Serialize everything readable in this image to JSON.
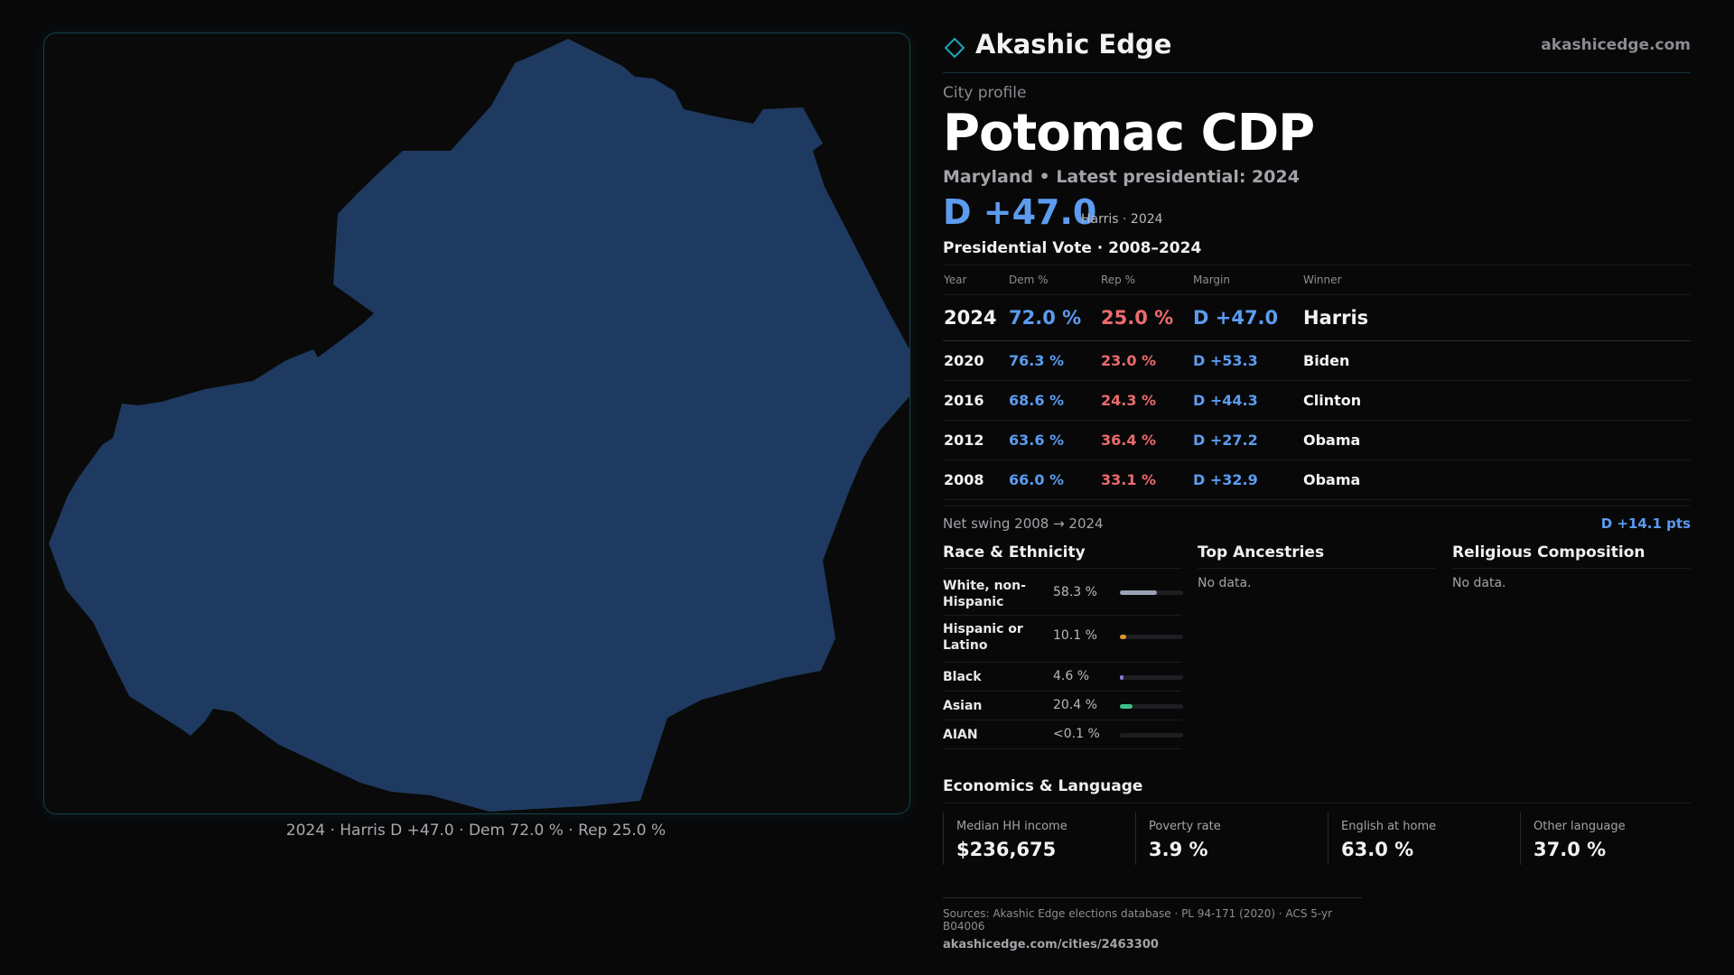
{
  "map": {
    "caption": "2024 · Harris D +47.0 · Dem 72.0 % · Rep 25.0 %",
    "fill_color": "#1f3a60",
    "border_color": "#12454d"
  },
  "header": {
    "logo_icon": "diamond-icon",
    "brand": "Akashic Edge",
    "site": "akashicedge.com"
  },
  "profile": {
    "kicker": "City profile",
    "title": "Potomac CDP",
    "subtitle": "Maryland • Latest presidential: 2024",
    "margin": "D +47.0",
    "margin_note": "Harris · 2024"
  },
  "votes": {
    "title": "Presidential Vote · 2008–2024",
    "headers": {
      "year": "Year",
      "dem": "Dem %",
      "rep": "Rep %",
      "margin": "Margin",
      "winner": "Winner"
    },
    "rows": [
      {
        "year": "2024",
        "dem": "72.0 %",
        "rep": "25.0 %",
        "margin": "D +47.0",
        "winner": "Harris"
      },
      {
        "year": "2020",
        "dem": "76.3 %",
        "rep": "23.0 %",
        "margin": "D +53.3",
        "winner": "Biden"
      },
      {
        "year": "2016",
        "dem": "68.6 %",
        "rep": "24.3 %",
        "margin": "D +44.3",
        "winner": "Clinton"
      },
      {
        "year": "2012",
        "dem": "63.6 %",
        "rep": "36.4 %",
        "margin": "D +27.2",
        "winner": "Obama"
      },
      {
        "year": "2008",
        "dem": "66.0 %",
        "rep": "33.1 %",
        "margin": "D +32.9",
        "winner": "Obama"
      }
    ],
    "swing_label": "Net swing 2008 → 2024",
    "swing_value": "D +14.1 pts"
  },
  "race": {
    "title": "Race & Ethnicity",
    "rows": [
      {
        "name": "White, non-Hispanic",
        "pct": "58.3 %",
        "value": 58.3,
        "color": "#9aa3b5"
      },
      {
        "name": "Hispanic or Latino",
        "pct": "10.1 %",
        "value": 10.1,
        "color": "#e0922e"
      },
      {
        "name": "Black",
        "pct": "4.6 %",
        "value": 4.6,
        "color": "#8a7be0"
      },
      {
        "name": "Asian",
        "pct": "20.4 %",
        "value": 20.4,
        "color": "#3fbf8a"
      },
      {
        "name": "AIAN",
        "pct": "<0.1 %",
        "value": 0.05,
        "color": "#9aa3b5"
      }
    ]
  },
  "ancestries": {
    "title": "Top Ancestries",
    "empty": "No data."
  },
  "religion": {
    "title": "Religious Composition",
    "empty": "No data."
  },
  "economics": {
    "title": "Economics & Language",
    "cells": [
      {
        "label": "Median HH income",
        "value": "$236,675"
      },
      {
        "label": "Poverty rate",
        "value": "3.9 %"
      },
      {
        "label": "English at home",
        "value": "63.0 %"
      },
      {
        "label": "Other language",
        "value": "37.0 %"
      }
    ]
  },
  "sources": {
    "line1": "Sources: Akashic Edge elections database · PL 94-171 (2020) · ACS 5-yr B04006",
    "line2": "akashicedge.com/cities/2463300"
  }
}
